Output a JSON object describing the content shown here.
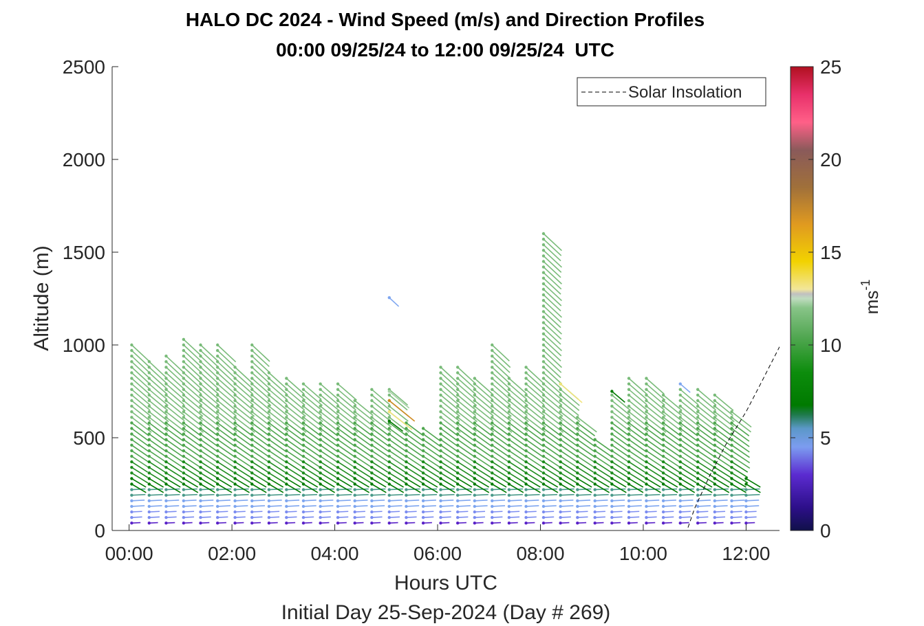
{
  "chart_data": {
    "type": "quiver",
    "title": "HALO DC 2024 - Wind Speed (m/s) and Direction Profiles",
    "subtitle": "00:00 09/25/24 to 12:00 09/25/24  UTC",
    "xlabel": "Hours UTC",
    "xlabel2": "Initial Day 25-Sep-2024 (Day # 269)",
    "ylabel": "Altitude (m)",
    "x_unit": "hours",
    "xlim": [
      -0.33,
      12.65
    ],
    "ylim": [
      0,
      2500
    ],
    "x_ticks": [
      0,
      2,
      4,
      6,
      8,
      10,
      12
    ],
    "x_tick_labels": [
      "00:00",
      "02:00",
      "04:00",
      "06:00",
      "08:00",
      "10:00",
      "12:00"
    ],
    "y_ticks": [
      0,
      500,
      1000,
      1500,
      2000,
      2500
    ],
    "y_tick_labels": [
      "0",
      "500",
      "1000",
      "1500",
      "2000",
      "2500"
    ],
    "colorbar": {
      "label": "ms",
      "label_superscript": "-1",
      "range": [
        0,
        25
      ],
      "ticks": [
        0,
        5,
        10,
        15,
        20,
        25
      ],
      "tick_labels": [
        "0",
        "5",
        "10",
        "15",
        "20",
        "25"
      ]
    },
    "legend": {
      "entries": [
        "Solar Insolation"
      ],
      "position": "top-right"
    },
    "solar_insolation": {
      "x": [
        -0.33,
        0.1,
        10.85,
        11.0,
        11.3,
        11.6,
        12.0,
        12.3,
        12.65
      ],
      "y": [
        0,
        0,
        0,
        120,
        300,
        460,
        640,
        800,
        990
      ]
    },
    "profile_times": [
      0.05,
      0.39,
      0.72,
      1.06,
      1.39,
      1.72,
      2.06,
      2.39,
      2.72,
      3.06,
      3.39,
      3.72,
      4.06,
      4.39,
      4.72,
      5.06,
      5.39,
      5.72,
      6.06,
      6.39,
      6.72,
      7.06,
      7.39,
      7.72,
      8.06,
      8.39,
      8.72,
      9.06,
      9.39,
      9.72,
      10.06,
      10.39,
      10.72,
      11.06,
      11.39,
      11.72,
      12.0
    ],
    "profile_tops": [
      1020,
      910,
      950,
      1050,
      1020,
      1020,
      900,
      1020,
      870,
      840,
      810,
      790,
      790,
      710,
      780,
      760,
      590,
      560,
      900,
      900,
      830,
      1020,
      830,
      900,
      1610,
      790,
      620,
      490,
      740,
      830,
      830,
      740,
      780,
      760,
      750,
      650,
      300
    ],
    "range_gate_spacing_m": 30,
    "sample_barbs": [
      {
        "t": 5.06,
        "alt": 1255,
        "speed": 4.5
      },
      {
        "t": 5.06,
        "alt": 750,
        "speed": 12.4
      },
      {
        "t": 5.06,
        "alt": 700,
        "speed": 16.5
      },
      {
        "t": 5.06,
        "alt": 640,
        "speed": 14.2
      },
      {
        "t": 5.06,
        "alt": 590,
        "speed": 7.0
      },
      {
        "t": 8.39,
        "alt": 790,
        "speed": 14.0
      },
      {
        "t": 9.39,
        "alt": 750,
        "speed": 7.0
      },
      {
        "t": 10.72,
        "alt": 790,
        "speed": 4.6
      }
    ]
  }
}
